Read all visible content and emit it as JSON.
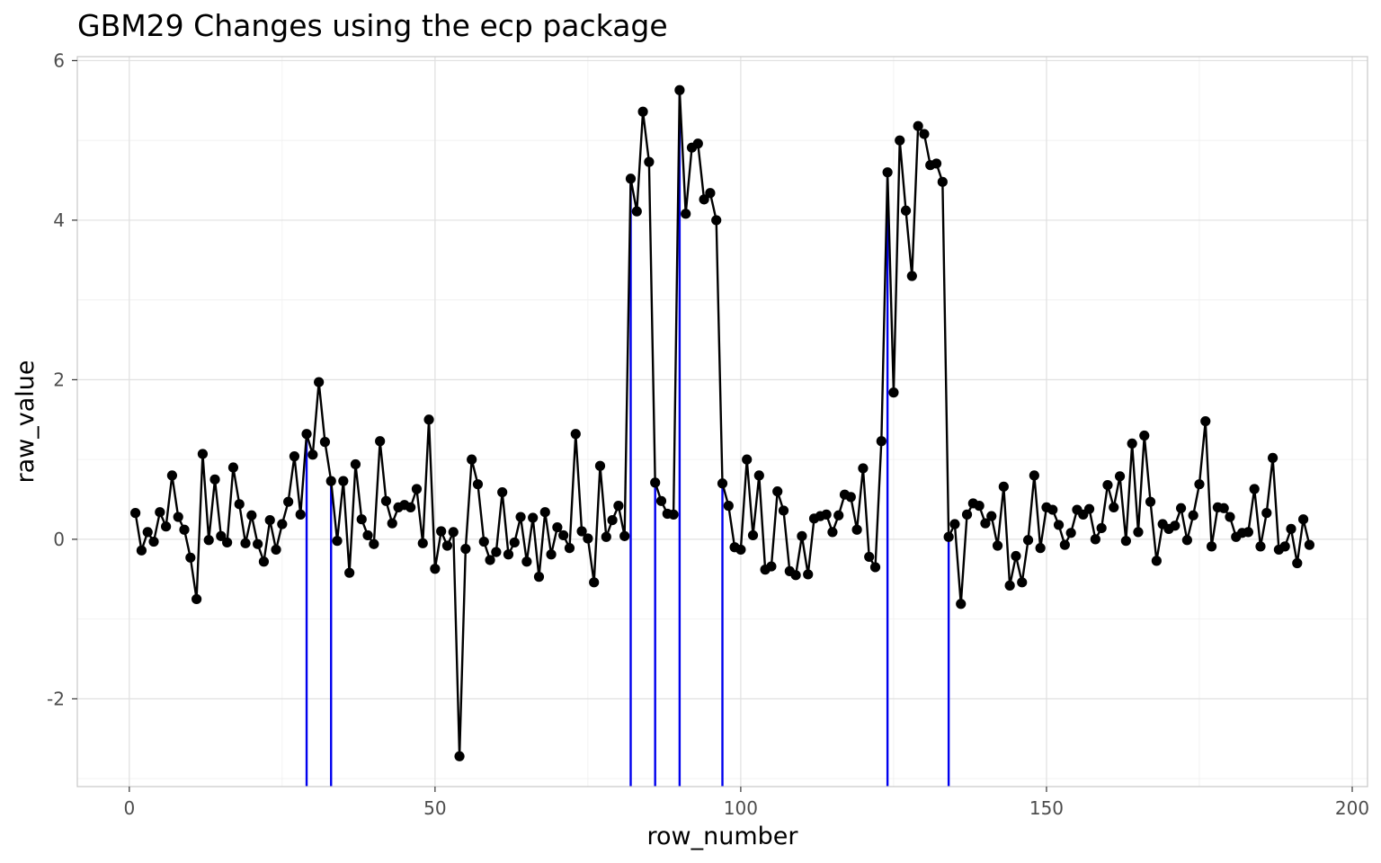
{
  "chart_data": {
    "type": "line",
    "title": "GBM29 Changes using the ecp package",
    "xlabel": "row_number",
    "ylabel": "raw_value",
    "xlim": [
      -8.5,
      202.5
    ],
    "ylim": [
      -3.1,
      6.05
    ],
    "x_ticks": [
      0,
      50,
      100,
      150,
      200
    ],
    "x_tick_labels": [
      "0",
      "50",
      "100",
      "150",
      "200"
    ],
    "y_ticks": [
      -2,
      0,
      2,
      4,
      6
    ],
    "y_tick_labels": [
      "-2",
      "0",
      "2",
      "4",
      "6"
    ],
    "grid": true,
    "legend": "none",
    "series": [
      {
        "color": "#000000",
        "x": [
          1,
          2,
          3,
          4,
          5,
          6,
          7,
          8,
          9,
          10,
          11,
          12,
          13,
          14,
          15,
          16,
          17,
          18,
          19,
          20,
          21,
          22,
          23,
          24,
          25,
          26,
          27,
          28,
          29,
          30,
          31,
          32,
          33,
          34,
          35,
          36,
          37,
          38,
          39,
          40,
          41,
          42,
          43,
          44,
          45,
          46,
          47,
          48,
          49,
          50,
          51,
          52,
          53,
          54,
          55,
          56,
          57,
          58,
          59,
          60,
          61,
          62,
          63,
          64,
          65,
          66,
          67,
          68,
          69,
          70,
          71,
          72,
          73,
          74,
          75,
          76,
          77,
          78,
          79,
          80,
          81,
          82,
          83,
          84,
          85,
          86,
          87,
          88,
          89,
          90,
          91,
          92,
          93,
          94,
          95,
          96,
          97,
          98,
          99,
          100,
          101,
          102,
          103,
          104,
          105,
          106,
          107,
          108,
          109,
          110,
          111,
          112,
          113,
          114,
          115,
          116,
          117,
          118,
          119,
          120,
          121,
          122,
          123,
          124,
          125,
          126,
          127,
          128,
          129,
          130,
          131,
          132,
          133,
          134,
          135,
          136,
          137,
          138,
          139,
          140,
          141,
          142,
          143,
          144,
          145,
          146,
          147,
          148,
          149,
          150,
          151,
          152,
          153,
          154,
          155,
          156,
          157,
          158,
          159,
          160,
          161,
          162,
          163,
          164,
          165,
          166,
          167,
          168,
          169,
          170,
          171,
          172,
          173,
          174,
          175,
          176,
          177,
          178,
          179,
          180,
          181,
          182,
          183,
          184,
          185,
          186,
          187,
          188,
          189,
          190,
          191,
          192,
          193
        ],
        "y": [
          0.33,
          -0.14,
          0.09,
          -0.03,
          0.34,
          0.16,
          0.8,
          0.28,
          0.12,
          -0.23,
          -0.75,
          1.07,
          -0.01,
          0.75,
          0.04,
          -0.04,
          0.9,
          0.44,
          -0.05,
          0.3,
          -0.06,
          -0.28,
          0.24,
          -0.13,
          0.19,
          0.47,
          1.04,
          0.31,
          1.32,
          1.06,
          1.97,
          1.22,
          0.73,
          -0.02,
          0.73,
          -0.42,
          0.94,
          0.25,
          0.05,
          -0.06,
          1.23,
          0.48,
          0.2,
          0.4,
          0.43,
          0.4,
          0.63,
          -0.05,
          1.5,
          -0.37,
          0.1,
          -0.08,
          0.09,
          -2.72,
          -0.12,
          1.0,
          0.69,
          -0.03,
          -0.26,
          -0.16,
          0.59,
          -0.19,
          -0.04,
          0.28,
          -0.28,
          0.27,
          -0.47,
          0.34,
          -0.19,
          0.15,
          0.05,
          -0.11,
          1.32,
          0.1,
          0.01,
          -0.54,
          0.92,
          0.03,
          0.24,
          0.42,
          0.04,
          4.52,
          4.11,
          5.36,
          4.73,
          0.71,
          0.48,
          0.32,
          0.31,
          5.63,
          4.08,
          4.91,
          4.96,
          4.26,
          4.34,
          4.0,
          0.7,
          0.42,
          -0.1,
          -0.13,
          1.0,
          0.05,
          0.8,
          -0.38,
          -0.34,
          0.6,
          0.36,
          -0.4,
          -0.45,
          0.04,
          -0.44,
          0.26,
          0.29,
          0.31,
          0.09,
          0.3,
          0.56,
          0.53,
          0.12,
          0.89,
          -0.22,
          -0.35,
          1.23,
          4.6,
          1.84,
          5.0,
          4.12,
          3.3,
          5.18,
          5.08,
          4.69,
          4.71,
          4.48,
          0.03,
          0.19,
          -0.81,
          0.31,
          0.45,
          0.42,
          0.2,
          0.29,
          -0.08,
          0.66,
          -0.58,
          -0.21,
          -0.54,
          -0.01,
          0.8,
          -0.11,
          0.4,
          0.37,
          0.18,
          -0.07,
          0.08,
          0.37,
          0.31,
          0.38,
          0.0,
          0.14,
          0.68,
          0.4,
          0.79,
          -0.02,
          1.2,
          0.09,
          1.3,
          0.47,
          -0.27,
          0.19,
          0.13,
          0.17,
          0.39,
          -0.01,
          0.3,
          0.69,
          1.48,
          -0.09,
          0.4,
          0.39,
          0.28,
          0.03,
          0.08,
          0.09,
          0.63,
          -0.09,
          0.33,
          1.02,
          -0.13,
          -0.09,
          0.13,
          -0.3,
          0.25,
          -0.07
        ]
      }
    ],
    "change_points": {
      "color": "#0000ee",
      "x": [
        29,
        33,
        82,
        86,
        90,
        97,
        124,
        134
      ],
      "y": [
        1.32,
        0.73,
        4.52,
        0.71,
        5.63,
        0.7,
        4.6,
        0.03
      ]
    }
  }
}
